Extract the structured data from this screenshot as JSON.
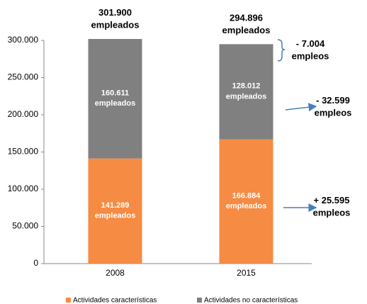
{
  "chart_data": {
    "type": "stacked_bar",
    "categories": [
      "2008",
      "2015"
    ],
    "series": [
      {
        "name": "Actividades características",
        "color": "#f68b43",
        "values": [
          141289,
          166884
        ],
        "value_labels": [
          "141.289 empleados",
          "166.884 empleados"
        ]
      },
      {
        "name": "Actividades no características",
        "color": "#808080",
        "values": [
          160611,
          128012
        ],
        "value_labels": [
          "160.611 empleados",
          "128.012 empleados"
        ]
      }
    ],
    "total_labels": [
      "301.900 empleados",
      "294.896 empleados"
    ],
    "annotations": [
      "- 7.004 empleos",
      "- 32.599 empleos",
      "+ 25.595 empleos"
    ],
    "ylim": [
      0,
      300000
    ],
    "yticks": [
      0,
      {
        "value": 50000,
        "label": "50.000"
      },
      {
        "value": 100000,
        "label": "100.000"
      },
      {
        "value": 150000,
        "label": "150.000"
      },
      {
        "value": 200000,
        "label": "200.000"
      },
      {
        "value": 250000,
        "label": "250.000"
      },
      {
        "value": 300000,
        "label": "300.000"
      }
    ],
    "grid": false,
    "legend": "bottom"
  }
}
